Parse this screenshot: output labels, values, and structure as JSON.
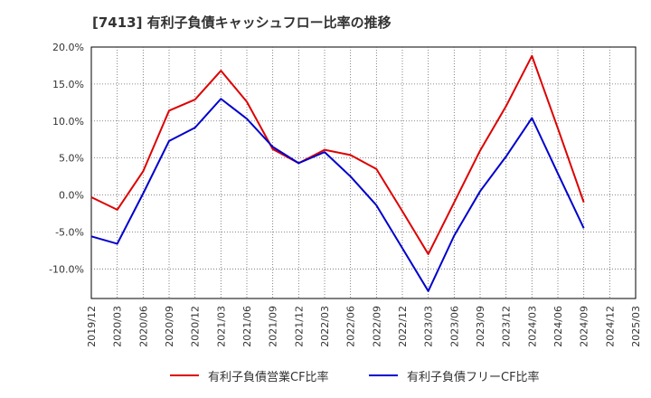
{
  "chart_data": {
    "type": "line",
    "title": "[7413]  有利子負債キャッシュフロー比率の推移",
    "x": [
      "2019/12",
      "2020/03",
      "2020/06",
      "2020/09",
      "2020/12",
      "2021/03",
      "2021/06",
      "2021/09",
      "2021/12",
      "2022/03",
      "2022/06",
      "2022/09",
      "2022/12",
      "2023/03",
      "2023/06",
      "2023/09",
      "2023/12",
      "2024/03",
      "2024/06",
      "2024/09",
      "2024/12",
      "2025/03"
    ],
    "y_ticks": [
      "20.0%",
      "15.0%",
      "10.0%",
      "5.0%",
      "0.0%",
      "-5.0%",
      "-10.0%"
    ],
    "ylim": [
      -14,
      20
    ],
    "grid": true,
    "legend_position": "bottom",
    "series": [
      {
        "name": "有利子負債営業CF比率",
        "color": "#dd0000",
        "values": [
          -0.3,
          -2.0,
          3.2,
          11.4,
          12.9,
          16.8,
          12.6,
          6.2,
          4.3,
          6.1,
          5.4,
          3.5,
          -2.2,
          -8.0,
          -1.0,
          6.0,
          12.0,
          18.8,
          9.0,
          -1.0,
          null,
          null
        ]
      },
      {
        "name": "有利子負債フリーCF比率",
        "color": "#0000cc",
        "values": [
          -5.6,
          -6.6,
          0.2,
          7.3,
          9.1,
          13.0,
          10.3,
          6.5,
          4.3,
          5.8,
          2.5,
          -1.4,
          -7.2,
          -13.0,
          -5.5,
          0.5,
          5.2,
          10.4,
          2.9,
          -4.5,
          null,
          null
        ]
      }
    ]
  }
}
